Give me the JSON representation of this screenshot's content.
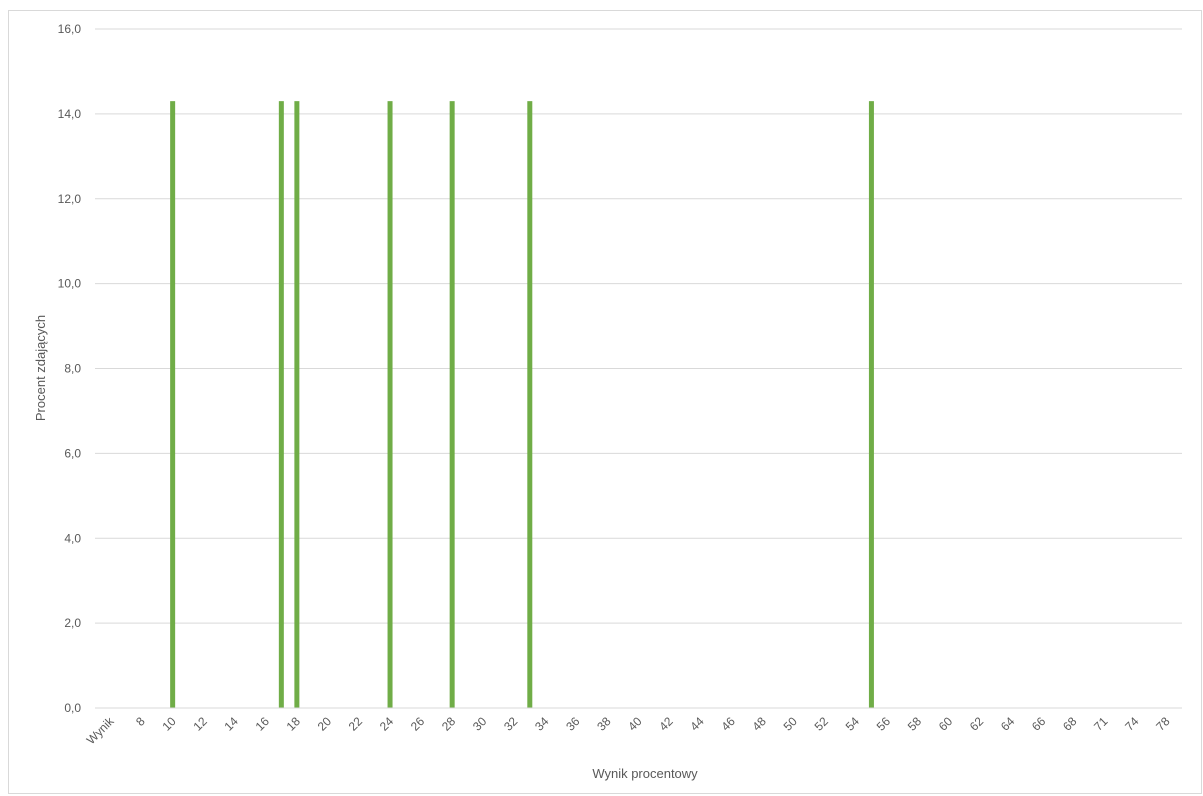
{
  "chart_data": {
    "type": "bar",
    "title": "",
    "xlabel": "Wynik procentowy",
    "ylabel": "Procent zdających",
    "ylim": [
      0,
      16
    ],
    "yticks": [
      "0,0",
      "2,0",
      "4,0",
      "6,0",
      "8,0",
      "10,0",
      "12,0",
      "14,0",
      "16,0"
    ],
    "grid": true,
    "bar_color": "#70ad47",
    "categories": [
      "Wynik",
      "8",
      "10",
      "12",
      "14",
      "16",
      "18",
      "20",
      "22",
      "24",
      "26",
      "28",
      "30",
      "32",
      "34",
      "36",
      "38",
      "40",
      "42",
      "44",
      "46",
      "48",
      "50",
      "52",
      "54",
      "56",
      "58",
      "60",
      "62",
      "64",
      "66",
      "68",
      "71",
      "74",
      "78"
    ],
    "bars": [
      {
        "x": "10",
        "value": 14.3
      },
      {
        "x": "17",
        "value": 14.3
      },
      {
        "x": "18",
        "value": 14.3
      },
      {
        "x": "24",
        "value": 14.3
      },
      {
        "x": "28",
        "value": 14.3
      },
      {
        "x": "33",
        "value": 14.3
      },
      {
        "x": "55",
        "value": 14.3
      }
    ]
  }
}
